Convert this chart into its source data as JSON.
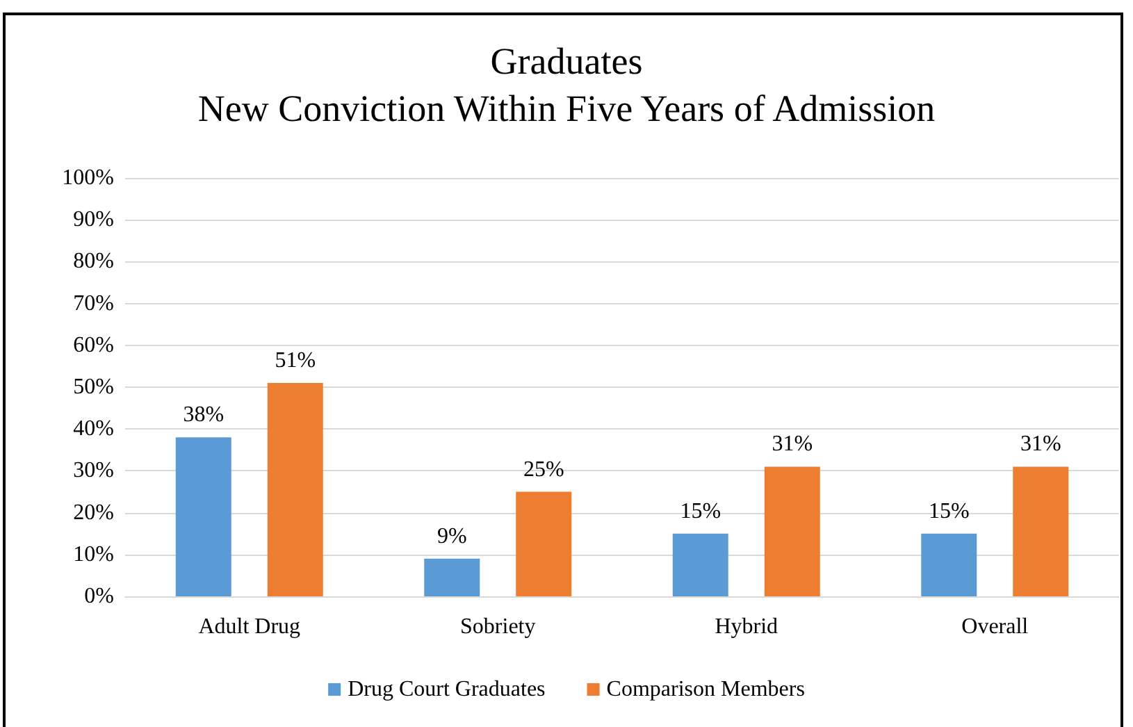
{
  "chart_data": {
    "type": "bar",
    "title": "Graduates\nNew Conviction Within Five Years of Admission",
    "categories": [
      "Adult Drug",
      "Sobriety",
      "Hybrid",
      "Overall"
    ],
    "series": [
      {
        "name": "Drug Court Graduates",
        "color": "#5b9bd5",
        "values": [
          38,
          9,
          15,
          15
        ],
        "value_labels": [
          "38%",
          "9%",
          "15%",
          "15%"
        ]
      },
      {
        "name": "Comparison Members",
        "color": "#ed7d31",
        "values": [
          51,
          25,
          31,
          31
        ],
        "value_labels": [
          "51%",
          "25%",
          "31%",
          "31%"
        ]
      }
    ],
    "ylim": [
      0,
      100
    ],
    "yticks": [
      {
        "value": 0,
        "label": "0%"
      },
      {
        "value": 10,
        "label": "10%"
      },
      {
        "value": 20,
        "label": "20%"
      },
      {
        "value": 30,
        "label": "30%"
      },
      {
        "value": 40,
        "label": "40%"
      },
      {
        "value": 50,
        "label": "50%"
      },
      {
        "value": 60,
        "label": "60%"
      },
      {
        "value": 70,
        "label": "70%"
      },
      {
        "value": 80,
        "label": "80%"
      },
      {
        "value": 90,
        "label": "90%"
      },
      {
        "value": 100,
        "label": "100%"
      }
    ],
    "grid": "y",
    "legend": "bottom"
  }
}
